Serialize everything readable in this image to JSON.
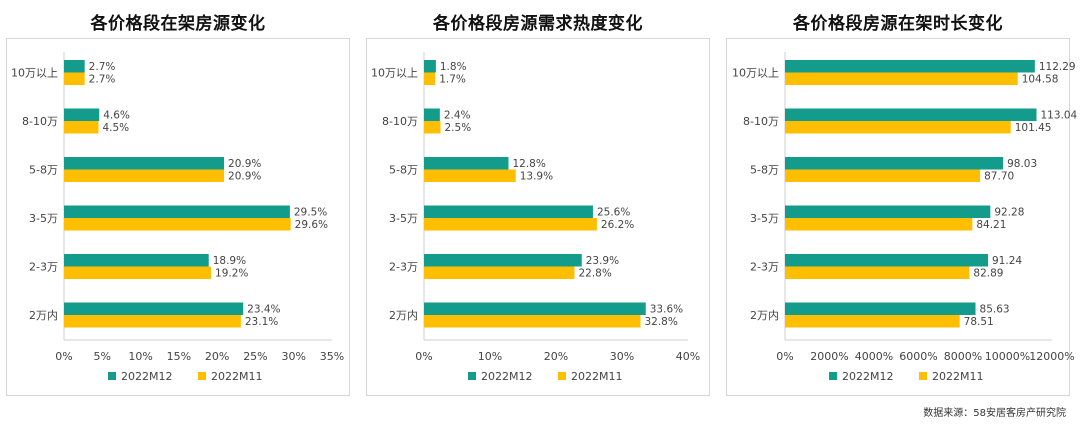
{
  "colors": {
    "series1": "#139c8b",
    "series2": "#ffbf00"
  },
  "source_note": "数据来源：58安居客房产研究院",
  "watermark": "58安居客房产研究院",
  "chart_data": [
    {
      "type": "bar",
      "orientation": "horizontal",
      "title": "各价格段在架房源变化",
      "categories": [
        "10万以上",
        "8-10万",
        "5-8万",
        "3-5万",
        "2-3万",
        "2万内"
      ],
      "series": [
        {
          "name": "2022M12",
          "values": [
            2.7,
            4.6,
            20.9,
            29.5,
            18.9,
            23.4
          ]
        },
        {
          "name": "2022M11",
          "values": [
            2.7,
            4.5,
            20.9,
            29.6,
            19.2,
            23.1
          ]
        }
      ],
      "value_labels": [
        [
          "2.7%",
          "4.6%",
          "20.9%",
          "29.5%",
          "18.9%",
          "23.4%"
        ],
        [
          "2.7%",
          "4.5%",
          "20.9%",
          "29.6%",
          "19.2%",
          "23.1%"
        ]
      ],
      "xlim": [
        0,
        35
      ],
      "ticks": [
        "0%",
        "5%",
        "10%",
        "15%",
        "20%",
        "25%",
        "30%",
        "35%"
      ],
      "legend_position": "bottom",
      "grid": false
    },
    {
      "type": "bar",
      "orientation": "horizontal",
      "title": "各价格段房源需求热度变化",
      "categories": [
        "10万以上",
        "8-10万",
        "5-8万",
        "3-5万",
        "2-3万",
        "2万内"
      ],
      "series": [
        {
          "name": "2022M12",
          "values": [
            1.8,
            2.4,
            12.8,
            25.6,
            23.9,
            33.6
          ]
        },
        {
          "name": "2022M11",
          "values": [
            1.7,
            2.5,
            13.9,
            26.2,
            22.8,
            32.8
          ]
        }
      ],
      "value_labels": [
        [
          "1.8%",
          "2.4%",
          "12.8%",
          "25.6%",
          "23.9%",
          "33.6%"
        ],
        [
          "1.7%",
          "2.5%",
          "13.9%",
          "26.2%",
          "22.8%",
          "32.8%"
        ]
      ],
      "xlim": [
        0,
        40
      ],
      "ticks": [
        "0%",
        "10%",
        "20%",
        "30%",
        "40%"
      ],
      "legend_position": "bottom",
      "grid": false
    },
    {
      "type": "bar",
      "orientation": "horizontal",
      "title": "各价格段房源在架时长变化",
      "categories": [
        "10万以上",
        "8-10万",
        "5-8万",
        "3-5万",
        "2-3万",
        "2万内"
      ],
      "series": [
        {
          "name": "2022M12",
          "values": [
            112.29,
            113.04,
            98.03,
            92.28,
            91.24,
            85.63
          ]
        },
        {
          "name": "2022M11",
          "values": [
            104.58,
            101.45,
            87.7,
            84.21,
            82.89,
            78.51
          ]
        }
      ],
      "value_labels": [
        [
          "112.29",
          "113.04",
          "98.03",
          "92.28",
          "91.24",
          "85.63"
        ],
        [
          "104.58",
          "101.45",
          "87.70",
          "84.21",
          "82.89",
          "78.51"
        ]
      ],
      "xlim": [
        0,
        120
      ],
      "ticks": [
        "0%",
        "2000%",
        "4000%",
        "6000%",
        "8000%",
        "10000%",
        "12000%"
      ],
      "legend_position": "bottom",
      "grid": false
    }
  ]
}
